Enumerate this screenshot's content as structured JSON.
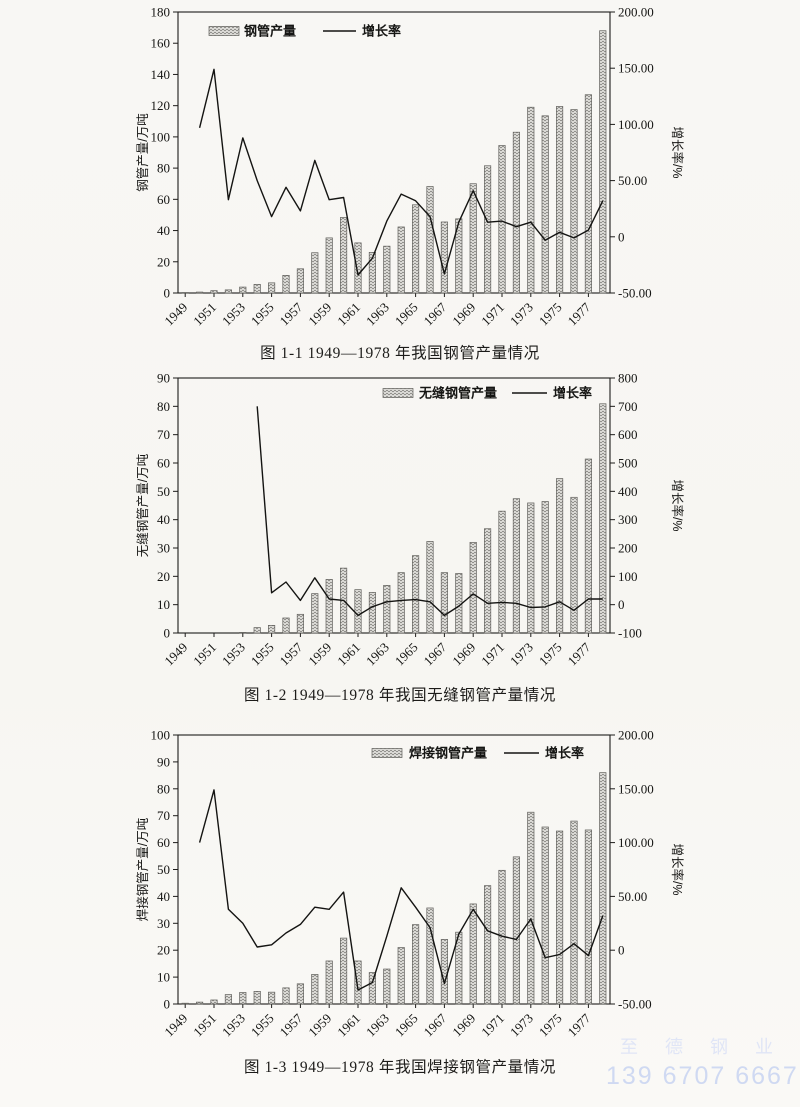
{
  "page": {
    "background": "#f8f7f4",
    "watermark": {
      "line1": "至 德 钢 业",
      "line2": "139 6707 6667",
      "color_line1": "#e0e5f6",
      "color_line2": "#cfd9f2"
    }
  },
  "chart_data": [
    {
      "id": "steel-pipe-total",
      "type": "bar",
      "subtype": "bar+line-combo-dual-axis",
      "title": "图 1-1  1949—1978 年我国钢管产量情况",
      "years": [
        1949,
        1950,
        1951,
        1952,
        1953,
        1954,
        1955,
        1956,
        1957,
        1958,
        1959,
        1960,
        1961,
        1962,
        1963,
        1964,
        1965,
        1966,
        1967,
        1968,
        1969,
        1970,
        1971,
        1972,
        1973,
        1974,
        1975,
        1976,
        1977,
        1978
      ],
      "x_tick_labels": [
        "1949",
        "1951",
        "1953",
        "1955",
        "1957",
        "1959",
        "1961",
        "1963",
        "1965",
        "1967",
        "1969",
        "1971",
        "1973",
        "1975",
        "1977"
      ],
      "bar_series": {
        "name": "钢管产量",
        "axis": "left",
        "unit": "万吨",
        "values": [
          0.3,
          0.6,
          1.5,
          2.0,
          3.8,
          5.5,
          6.5,
          11.3,
          15.5,
          25.8,
          35.3,
          48.4,
          32.1,
          26.0,
          30.0,
          42.3,
          56.5,
          68.2,
          45.5,
          47.5,
          70.0,
          81.5,
          94.5,
          103.0,
          119.0,
          113.5,
          119.5,
          117.5,
          127.0,
          168.0
        ]
      },
      "line_series": {
        "name": "增长率",
        "axis": "right",
        "unit": "%",
        "values": [
          null,
          97,
          149,
          33,
          88,
          50,
          18,
          44,
          23,
          68,
          33,
          35,
          -34,
          -19,
          14,
          38,
          32,
          18,
          -33,
          13,
          41,
          13,
          14,
          9,
          13,
          -3,
          4,
          -1,
          6,
          32
        ]
      },
      "left_axis": {
        "label": "钢管产量/万吨",
        "min": 0,
        "max": 180,
        "step": 20,
        "tick_labels": [
          "0",
          "20",
          "40",
          "60",
          "80",
          "100",
          "120",
          "140",
          "160",
          "180"
        ]
      },
      "right_axis": {
        "label": "增长率/%",
        "min": -50,
        "max": 200,
        "step": 50,
        "tick_labels": [
          "-50.00",
          "0",
          "50.00",
          "100.00",
          "150.00",
          "200.00"
        ]
      },
      "legend_position": "top-left-inside",
      "grid": false
    },
    {
      "id": "seamless-steel-pipe",
      "type": "bar",
      "subtype": "bar+line-combo-dual-axis",
      "title": "图 1-2  1949—1978 年我国无缝钢管产量情况",
      "years": [
        1949,
        1950,
        1951,
        1952,
        1953,
        1954,
        1955,
        1956,
        1957,
        1958,
        1959,
        1960,
        1961,
        1962,
        1963,
        1964,
        1965,
        1966,
        1967,
        1968,
        1969,
        1970,
        1971,
        1972,
        1973,
        1974,
        1975,
        1976,
        1977,
        1978
      ],
      "x_tick_labels": [
        "1949",
        "1951",
        "1953",
        "1955",
        "1957",
        "1959",
        "1961",
        "1963",
        "1965",
        "1967",
        "1969",
        "1971",
        "1973",
        "1975",
        "1977"
      ],
      "bar_series": {
        "name": "无缝钢管产量",
        "axis": "left",
        "unit": "万吨",
        "values": [
          null,
          null,
          null,
          null,
          0.2,
          1.9,
          2.7,
          5.3,
          6.6,
          13.9,
          18.9,
          22.9,
          15.3,
          14.3,
          16.8,
          21.3,
          27.3,
          32.3,
          21.3,
          21.0,
          32.0,
          36.8,
          43.0,
          47.4,
          45.9,
          46.4,
          54.5,
          47.9,
          61.4,
          80.9
        ]
      },
      "line_series": {
        "name": "增长率",
        "axis": "right",
        "unit": "%",
        "values": [
          null,
          null,
          null,
          null,
          null,
          700,
          42,
          80,
          15,
          95,
          20,
          15,
          -38,
          -7,
          10,
          15,
          18,
          10,
          -38,
          -5,
          38,
          5,
          8,
          5,
          -10,
          -8,
          10,
          -20,
          20,
          20
        ]
      },
      "left_axis": {
        "label": "无缝钢管产量/万吨",
        "min": 0,
        "max": 90,
        "step": 10,
        "tick_labels": [
          "0",
          "10",
          "20",
          "30",
          "40",
          "50",
          "60",
          "70",
          "80",
          "90"
        ]
      },
      "right_axis": {
        "label": "增长率/%",
        "min": -100,
        "max": 800,
        "step": 100,
        "tick_labels": [
          "-100",
          "0",
          "100",
          "200",
          "300",
          "400",
          "500",
          "600",
          "700",
          "800"
        ]
      },
      "legend_position": "top-right-inside",
      "grid": false
    },
    {
      "id": "welded-steel-pipe",
      "type": "bar",
      "subtype": "bar+line-combo-dual-axis",
      "title": "图 1-3  1949—1978 年我国焊接钢管产量情况",
      "years": [
        1949,
        1950,
        1951,
        1952,
        1953,
        1954,
        1955,
        1956,
        1957,
        1958,
        1959,
        1960,
        1961,
        1962,
        1963,
        1964,
        1965,
        1966,
        1967,
        1968,
        1969,
        1970,
        1971,
        1972,
        1973,
        1974,
        1975,
        1976,
        1977,
        1978
      ],
      "x_tick_labels": [
        "1949",
        "1951",
        "1953",
        "1955",
        "1957",
        "1959",
        "1961",
        "1963",
        "1965",
        "1967",
        "1969",
        "1971",
        "1973",
        "1975",
        "1977"
      ],
      "bar_series": {
        "name": "焊接钢管产量",
        "axis": "left",
        "unit": "万吨",
        "values": [
          0.3,
          0.7,
          1.5,
          3.5,
          4.3,
          4.7,
          4.4,
          6.0,
          7.5,
          11.0,
          16.0,
          24.5,
          16.0,
          11.7,
          13.0,
          21.0,
          29.5,
          35.7,
          24.0,
          26.7,
          37.2,
          44.0,
          49.7,
          54.7,
          71.3,
          65.8,
          64.3,
          68.0,
          64.7,
          86.0
        ]
      },
      "line_series": {
        "name": "增长率",
        "axis": "right",
        "unit": "%",
        "values": [
          null,
          100,
          149,
          38,
          25,
          3,
          5,
          16,
          24,
          40,
          38,
          54,
          -37,
          -30,
          13,
          58,
          40,
          21,
          -31,
          15,
          38,
          18,
          13,
          10,
          29,
          -7,
          -4,
          6,
          -5,
          32
        ]
      },
      "left_axis": {
        "label": "焊接钢管产量/万吨",
        "min": 0,
        "max": 100,
        "step": 10,
        "tick_labels": [
          "0",
          "10",
          "20",
          "30",
          "40",
          "50",
          "60",
          "70",
          "80",
          "90",
          "100"
        ]
      },
      "right_axis": {
        "label": "增长率/%",
        "min": -50,
        "max": 200,
        "step": 50,
        "tick_labels": [
          "-50.00",
          "0",
          "50.00",
          "100.00",
          "150.00",
          "200.00"
        ]
      },
      "legend_position": "top-right-inside",
      "grid": false
    }
  ]
}
